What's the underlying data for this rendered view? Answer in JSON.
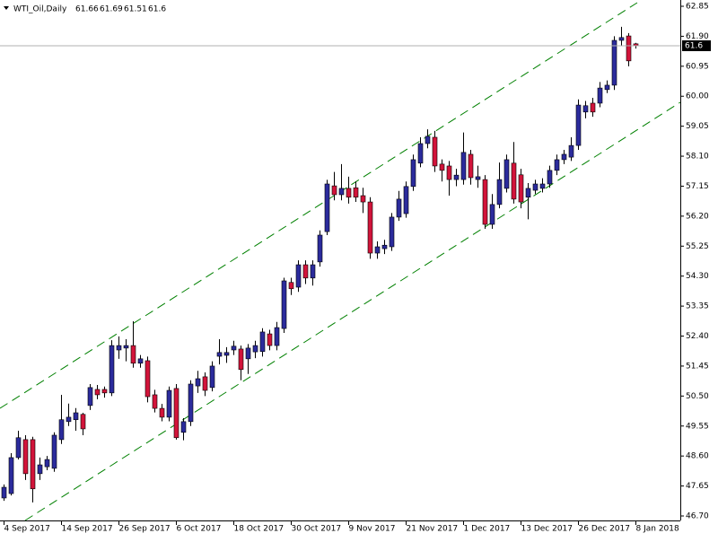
{
  "chart_data": {
    "type": "candlestick",
    "title": "WTI_Oil,Daily",
    "categories": [
      "4 Sep 2017",
      null,
      null,
      null,
      null,
      null,
      null,
      null,
      "14 Sep 2017",
      null,
      null,
      null,
      null,
      null,
      null,
      null,
      "26 Sep 2017",
      null,
      null,
      null,
      null,
      null,
      null,
      null,
      "6 Oct 2017",
      null,
      null,
      null,
      null,
      null,
      null,
      null,
      "18 Oct 2017",
      null,
      null,
      null,
      null,
      null,
      null,
      null,
      "30 Oct 2017",
      null,
      null,
      null,
      null,
      null,
      null,
      null,
      "9 Nov 2017",
      null,
      null,
      null,
      null,
      null,
      null,
      null,
      "21 Nov 2017",
      null,
      null,
      null,
      null,
      null,
      null,
      null,
      "1 Dec 2017",
      null,
      null,
      null,
      null,
      null,
      null,
      null,
      "13 Dec 2017",
      null,
      null,
      null,
      null,
      null,
      null,
      null,
      "26 Dec 2017",
      null,
      null,
      null,
      null,
      null,
      null,
      null,
      "8 Jan 2018"
    ],
    "open": [
      47.27,
      47.41,
      48.55,
      49.12,
      49.12,
      48.04,
      48.26,
      48.21,
      49.12,
      49.69,
      49.75,
      49.92,
      50.2,
      50.71,
      50.71,
      50.6,
      51.96,
      52.02,
      52.1,
      51.54,
      51.62,
      50.54,
      50.11,
      49.83,
      50.74,
      49.35,
      49.69,
      50.82,
      51.11,
      50.77,
      51.76,
      51.79,
      51.96,
      51.99,
      51.68,
      51.9,
      51.91,
      52.47,
      52.1,
      52.64,
      54.1,
      53.95,
      54.66,
      54.24,
      54.75,
      55.71,
      57.16,
      56.88,
      57.08,
      57.1,
      56.85,
      56.65,
      55.03,
      55.17,
      55.23,
      56.17,
      56.28,
      57.14,
      57.88,
      58.5,
      58.7,
      57.85,
      57.79,
      57.36,
      57.36,
      58.16,
      57.36,
      57.36,
      55.94,
      56.57,
      57.08,
      57.88,
      57.51,
      56.8,
      57.02,
      57.08,
      57.22,
      57.65,
      57.99,
      58.07,
      58.44,
      59.5,
      59.78,
      59.78,
      60.21,
      60.35,
      61.77,
      61.91,
      61.66
    ],
    "high": [
      47.7,
      48.69,
      49.4,
      49.26,
      49.21,
      48.55,
      48.6,
      49.35,
      50.54,
      50.26,
      50.12,
      49.97,
      50.88,
      50.85,
      50.8,
      52.27,
      52.39,
      52.3,
      52.87,
      51.8,
      51.75,
      50.7,
      50.25,
      50.8,
      50.88,
      49.8,
      51.0,
      51.3,
      51.25,
      51.6,
      52.3,
      52.05,
      52.25,
      52.1,
      52.15,
      52.25,
      52.65,
      52.6,
      52.85,
      54.25,
      54.25,
      54.8,
      54.8,
      54.8,
      55.75,
      57.35,
      57.6,
      57.85,
      57.45,
      57.3,
      57.1,
      56.8,
      55.4,
      55.45,
      56.3,
      57.0,
      57.3,
      58.15,
      58.7,
      58.95,
      58.9,
      58.0,
      57.95,
      57.7,
      58.85,
      58.3,
      57.8,
      57.5,
      56.9,
      57.9,
      58.15,
      58.55,
      57.7,
      57.25,
      57.35,
      57.4,
      57.8,
      58.15,
      58.3,
      58.7,
      59.9,
      59.85,
      59.95,
      60.45,
      60.5,
      61.9,
      62.2,
      62.0,
      61.69
    ],
    "low": [
      47.18,
      47.35,
      48.49,
      47.84,
      47.13,
      47.84,
      48.15,
      48.1,
      48.98,
      49.55,
      49.4,
      49.26,
      50.06,
      50.4,
      50.45,
      50.5,
      51.68,
      51.6,
      51.4,
      51.4,
      50.3,
      49.98,
      49.7,
      49.7,
      49.12,
      49.1,
      49.55,
      50.6,
      50.5,
      50.65,
      51.5,
      51.55,
      51.8,
      51.0,
      51.2,
      51.7,
      51.75,
      51.95,
      51.95,
      52.5,
      53.7,
      53.8,
      54.05,
      54.0,
      54.6,
      55.6,
      56.7,
      56.7,
      56.6,
      56.65,
      56.3,
      54.85,
      54.85,
      55.0,
      55.1,
      56.05,
      56.15,
      57.0,
      57.75,
      58.35,
      57.6,
      57.3,
      56.85,
      57.15,
      57.2,
      57.2,
      57.1,
      55.8,
      55.8,
      56.45,
      56.95,
      56.6,
      56.45,
      56.1,
      56.9,
      56.95,
      57.1,
      57.5,
      57.85,
      57.95,
      58.3,
      59.3,
      59.35,
      59.65,
      60.1,
      60.2,
      61.6,
      60.95,
      61.51
    ],
    "close": [
      47.61,
      48.55,
      49.18,
      48.04,
      47.56,
      48.32,
      48.49,
      49.26,
      49.75,
      49.83,
      49.97,
      49.46,
      50.77,
      50.54,
      50.6,
      52.1,
      52.1,
      52.1,
      51.54,
      51.68,
      50.48,
      50.11,
      49.83,
      50.68,
      49.18,
      49.69,
      50.88,
      51.05,
      50.68,
      51.45,
      51.88,
      51.88,
      52.08,
      51.34,
      52.02,
      52.1,
      52.53,
      52.1,
      52.67,
      54.15,
      53.9,
      54.66,
      54.24,
      54.66,
      55.6,
      57.22,
      56.88,
      57.08,
      56.8,
      56.8,
      56.65,
      55.03,
      55.23,
      55.28,
      56.17,
      56.74,
      57.14,
      57.99,
      58.5,
      58.73,
      57.79,
      57.65,
      57.36,
      57.5,
      58.22,
      57.42,
      57.45,
      55.94,
      56.57,
      57.36,
      57.99,
      56.74,
      56.65,
      57.08,
      57.22,
      57.22,
      57.65,
      57.99,
      58.16,
      58.44,
      59.72,
      59.7,
      59.5,
      60.26,
      60.35,
      61.77,
      61.86,
      61.12,
      61.6
    ],
    "up_color": "#2b2b9c",
    "down_color": "#d2143a",
    "ylim": [
      46.7,
      62.85
    ],
    "yticks": [
      62.85,
      {
        "value": 61.9,
        "label": "61.90"
      },
      60.95,
      {
        "value": 60,
        "label": "60.00"
      },
      59.05,
      {
        "value": 58.1,
        "label": "58.10"
      },
      57.15,
      {
        "value": 56.2,
        "label": "56.20"
      },
      55.25,
      {
        "value": 54.3,
        "label": "54.30"
      },
      53.35,
      {
        "value": 52.4,
        "label": "52.40"
      },
      51.45,
      {
        "value": 50.5,
        "label": "50.50"
      },
      49.55,
      {
        "value": 48.6,
        "label": "48.60"
      },
      47.65,
      {
        "value": 46.7,
        "label": "46.70"
      }
    ]
  }
}
